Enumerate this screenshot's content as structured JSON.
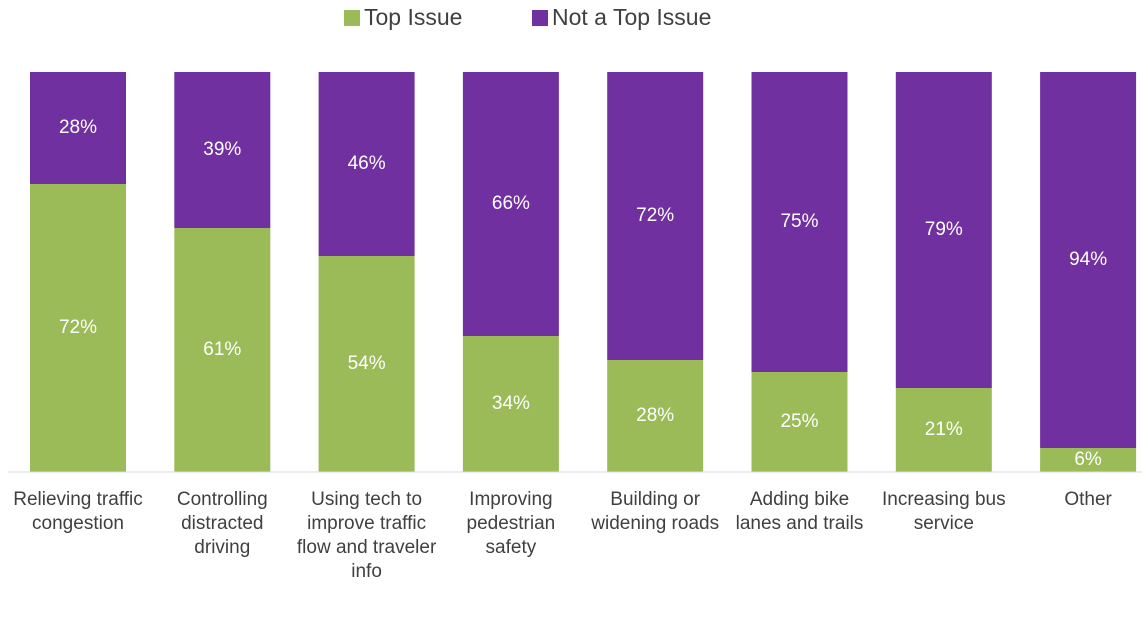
{
  "chart_data": {
    "type": "stacked_bar",
    "categories": [
      "Relieving traffic congestion",
      "Controlling distracted driving",
      "Using tech to improve traffic flow and traveler info",
      "Improving pedestrian safety",
      "Building or widening roads",
      "Adding bike lanes and trails",
      "Increasing bus service",
      "Other"
    ],
    "series": [
      {
        "name": "Top Issue",
        "color": "#9bbb59",
        "values": [
          72,
          61,
          54,
          34,
          28,
          25,
          21,
          6
        ],
        "value_labels": [
          "72%",
          "61%",
          "54%",
          "34%",
          "28%",
          "25%",
          "21%",
          "6%"
        ]
      },
      {
        "name": "Not a Top Issue",
        "color": "#7030a0",
        "values": [
          28,
          39,
          46,
          66,
          72,
          75,
          79,
          94
        ],
        "value_labels": [
          "28%",
          "39%",
          "46%",
          "66%",
          "72%",
          "75%",
          "79%",
          "94%"
        ]
      }
    ],
    "ylim": [
      0,
      100
    ],
    "legend": "top"
  }
}
